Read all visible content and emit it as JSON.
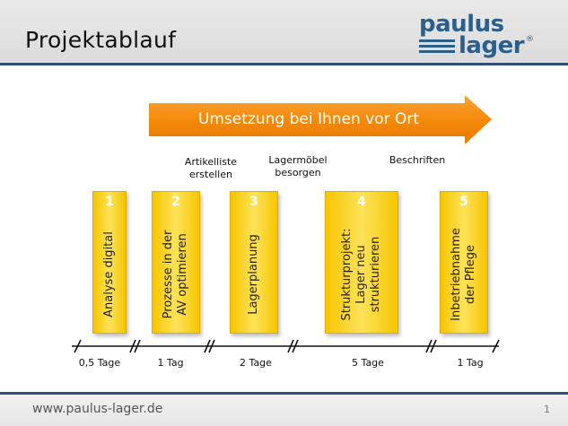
{
  "header": {
    "title": "Projektablauf"
  },
  "logo": {
    "line1": "paulus",
    "line2": "lager",
    "registered": "®",
    "colors": {
      "brand": "#2b5f8c"
    }
  },
  "banner": {
    "label": "Umsetzung bei Ihnen vor Ort",
    "color": "#f58a0a"
  },
  "notes": [
    {
      "text": "Artikelliste\nerstellen"
    },
    {
      "text": "Lagermöbel\nbesorgen"
    },
    {
      "text": "Beschriften"
    }
  ],
  "steps": [
    {
      "number": "1",
      "label": "Analyse digital",
      "duration": "0,5 Tage"
    },
    {
      "number": "2",
      "label": "Prozesse in der\nAV optimieren",
      "duration": "1 Tag"
    },
    {
      "number": "3",
      "label": "Lagerplanung",
      "duration": "2 Tage"
    },
    {
      "number": "4",
      "label": "Strukturprojekt:\nLager neu\nstrukturieren",
      "duration": "5 Tage"
    },
    {
      "number": "5",
      "label": "Inbetriebnahme\nder Pflege",
      "duration": "1 Tag"
    }
  ],
  "footer": {
    "url": "www.paulus-lager.de",
    "page": "1"
  },
  "colors": {
    "step_fill": "#f7c500",
    "header_line": "#2f4f7a"
  }
}
